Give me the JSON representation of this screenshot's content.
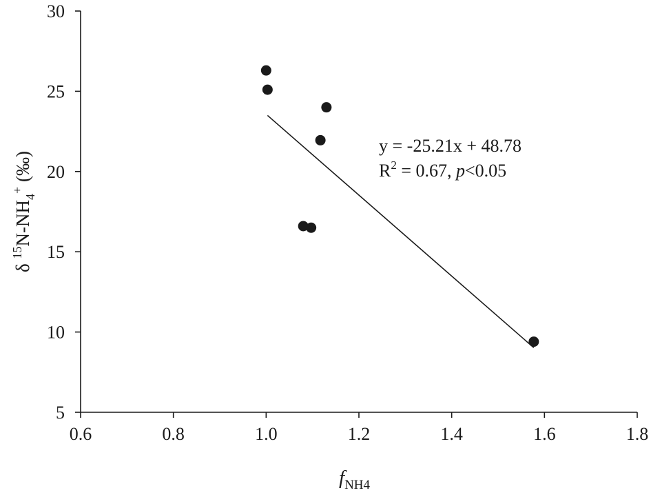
{
  "chart_data": {
    "type": "scatter",
    "x_label": {
      "main": "f",
      "sub": "NH4"
    },
    "y_label": {
      "pre": "δ ",
      "sup1": "15",
      "mid": "N-NH",
      "sub": "4",
      "sup2": "+",
      "post": " (‰)"
    },
    "xlim": [
      0.6,
      1.8
    ],
    "ylim": [
      5,
      30
    ],
    "x_ticks": [
      "0.6",
      "0.8",
      "1.0",
      "1.2",
      "1.4",
      "1.6",
      "1.8"
    ],
    "y_ticks": [
      "5",
      "10",
      "15",
      "20",
      "25",
      "30"
    ],
    "grid": false,
    "points": [
      {
        "x": 1.0,
        "y": 26.3
      },
      {
        "x": 1.003,
        "y": 25.1
      },
      {
        "x": 1.13,
        "y": 24.0
      },
      {
        "x": 1.117,
        "y": 21.95
      },
      {
        "x": 1.08,
        "y": 16.6
      },
      {
        "x": 1.097,
        "y": 16.5
      },
      {
        "x": 1.577,
        "y": 9.4
      }
    ],
    "fit_line": {
      "slope": -25.21,
      "intercept": 48.78,
      "x_range": [
        1.003,
        1.577
      ]
    },
    "annotation": {
      "line1": "y = -25.21x + 48.78",
      "r_base": "R",
      "r_sup": "2",
      "r_rest": " = 0.67, ",
      "p_italic": "p",
      "p_rest": "<0.05"
    }
  }
}
